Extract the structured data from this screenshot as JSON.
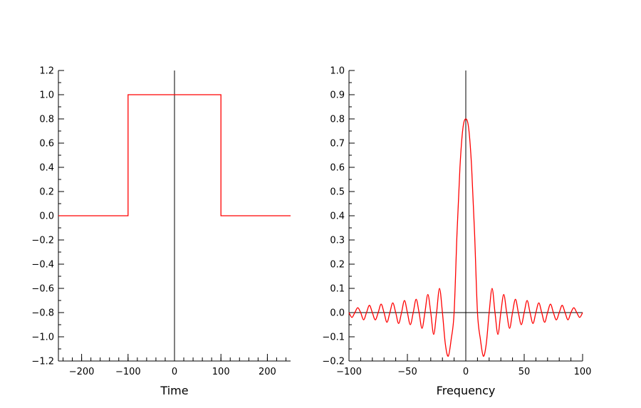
{
  "chart_data": [
    {
      "type": "line",
      "xlabel": "Time",
      "ylabel": "",
      "xlim": [
        -250,
        250
      ],
      "ylim": [
        -1.2,
        1.2
      ],
      "x_ticks": [
        -200,
        -100,
        0,
        100,
        200
      ],
      "x_tick_labels": [
        "−200",
        "−100",
        "0",
        "100",
        "200"
      ],
      "x_minor_step": 20,
      "y_ticks": [
        -1.2,
        -1.0,
        -0.8,
        -0.6,
        -0.4,
        -0.2,
        0.0,
        0.2,
        0.4,
        0.6,
        0.8,
        1.0,
        1.2
      ],
      "y_tick_labels": [
        "−1.2",
        "−1.0",
        "−0.8",
        "−0.6",
        "−0.4",
        "−0.2",
        "0.0",
        "0.2",
        "0.4",
        "0.6",
        "0.8",
        "1.0",
        "1.2"
      ],
      "y_minor_step": 0.1,
      "vline_x": 0,
      "grid": false,
      "series": [
        {
          "color": "#ff0000",
          "x": [
            -250,
            -100,
            -100,
            100,
            100,
            250
          ],
          "y": [
            0,
            0,
            1,
            1,
            0,
            0
          ]
        }
      ]
    },
    {
      "type": "line",
      "xlabel": "Frequency",
      "ylabel": "",
      "xlim": [
        -100,
        100
      ],
      "ylim": [
        -0.2,
        1.0
      ],
      "x_ticks": [
        -100,
        -50,
        0,
        50,
        100
      ],
      "x_tick_labels": [
        "−100",
        "−50",
        "0",
        "50",
        "100"
      ],
      "x_minor_step": 10,
      "y_ticks": [
        -0.2,
        -0.1,
        0.0,
        0.1,
        0.2,
        0.3,
        0.4,
        0.5,
        0.6,
        0.7,
        0.8,
        0.9,
        1.0
      ],
      "y_tick_labels": [
        "−0.2",
        "−0.1",
        "0.0",
        "0.1",
        "0.2",
        "0.3",
        "0.4",
        "0.5",
        "0.6",
        "0.7",
        "0.8",
        "0.9",
        "1.0"
      ],
      "y_minor_step": 0.05,
      "vline_x": 0,
      "hline_y": 0,
      "grid": false,
      "series": [
        {
          "color": "#ff0000",
          "x": [
            -100,
            -97.5,
            -95,
            -92.5,
            -90,
            -87.5,
            -85,
            -82.5,
            -80,
            -77.5,
            -75,
            -72.5,
            -70,
            -67.5,
            -65,
            -62.5,
            -60,
            -57.5,
            -55,
            -52.5,
            -50,
            -47.5,
            -45,
            -42.5,
            -40,
            -37.5,
            -35,
            -32.5,
            -30,
            -27.5,
            -25,
            -22.5,
            -20,
            -17.5,
            -15,
            -12.5,
            -10,
            -7.5,
            -5,
            -2.5,
            0,
            2.5,
            5,
            7.5,
            10,
            12.5,
            15,
            17.5,
            20,
            22.5,
            25,
            27.5,
            30,
            32.5,
            35,
            37.5,
            40,
            42.5,
            45,
            47.5,
            50,
            52.5,
            55,
            57.5,
            60,
            62.5,
            65,
            67.5,
            70,
            72.5,
            75,
            77.5,
            80,
            82.5,
            85,
            87.5,
            90,
            92.5,
            95,
            97.5,
            100
          ],
          "y": [
            0,
            -0.02,
            0,
            0.02,
            0,
            -0.03,
            0,
            0.03,
            0,
            -0.03,
            0,
            0.035,
            0,
            -0.04,
            0,
            0.04,
            0,
            -0.045,
            0,
            0.05,
            0,
            -0.05,
            0,
            0.055,
            0,
            -0.065,
            0,
            0.075,
            0,
            -0.09,
            0,
            0.1,
            0,
            -0.13,
            -0.18,
            -0.11,
            0,
            0.33,
            0.6,
            0.76,
            0.8,
            0.76,
            0.6,
            0.33,
            0,
            -0.11,
            -0.18,
            -0.13,
            0,
            0.1,
            0,
            -0.09,
            0,
            0.075,
            0,
            -0.065,
            0,
            0.055,
            0,
            -0.05,
            0,
            0.05,
            0,
            -0.045,
            0,
            0.04,
            0,
            -0.04,
            0,
            0.035,
            0,
            -0.03,
            0,
            0.03,
            0,
            -0.03,
            0,
            0.02,
            0,
            -0.02,
            0
          ]
        }
      ]
    }
  ]
}
